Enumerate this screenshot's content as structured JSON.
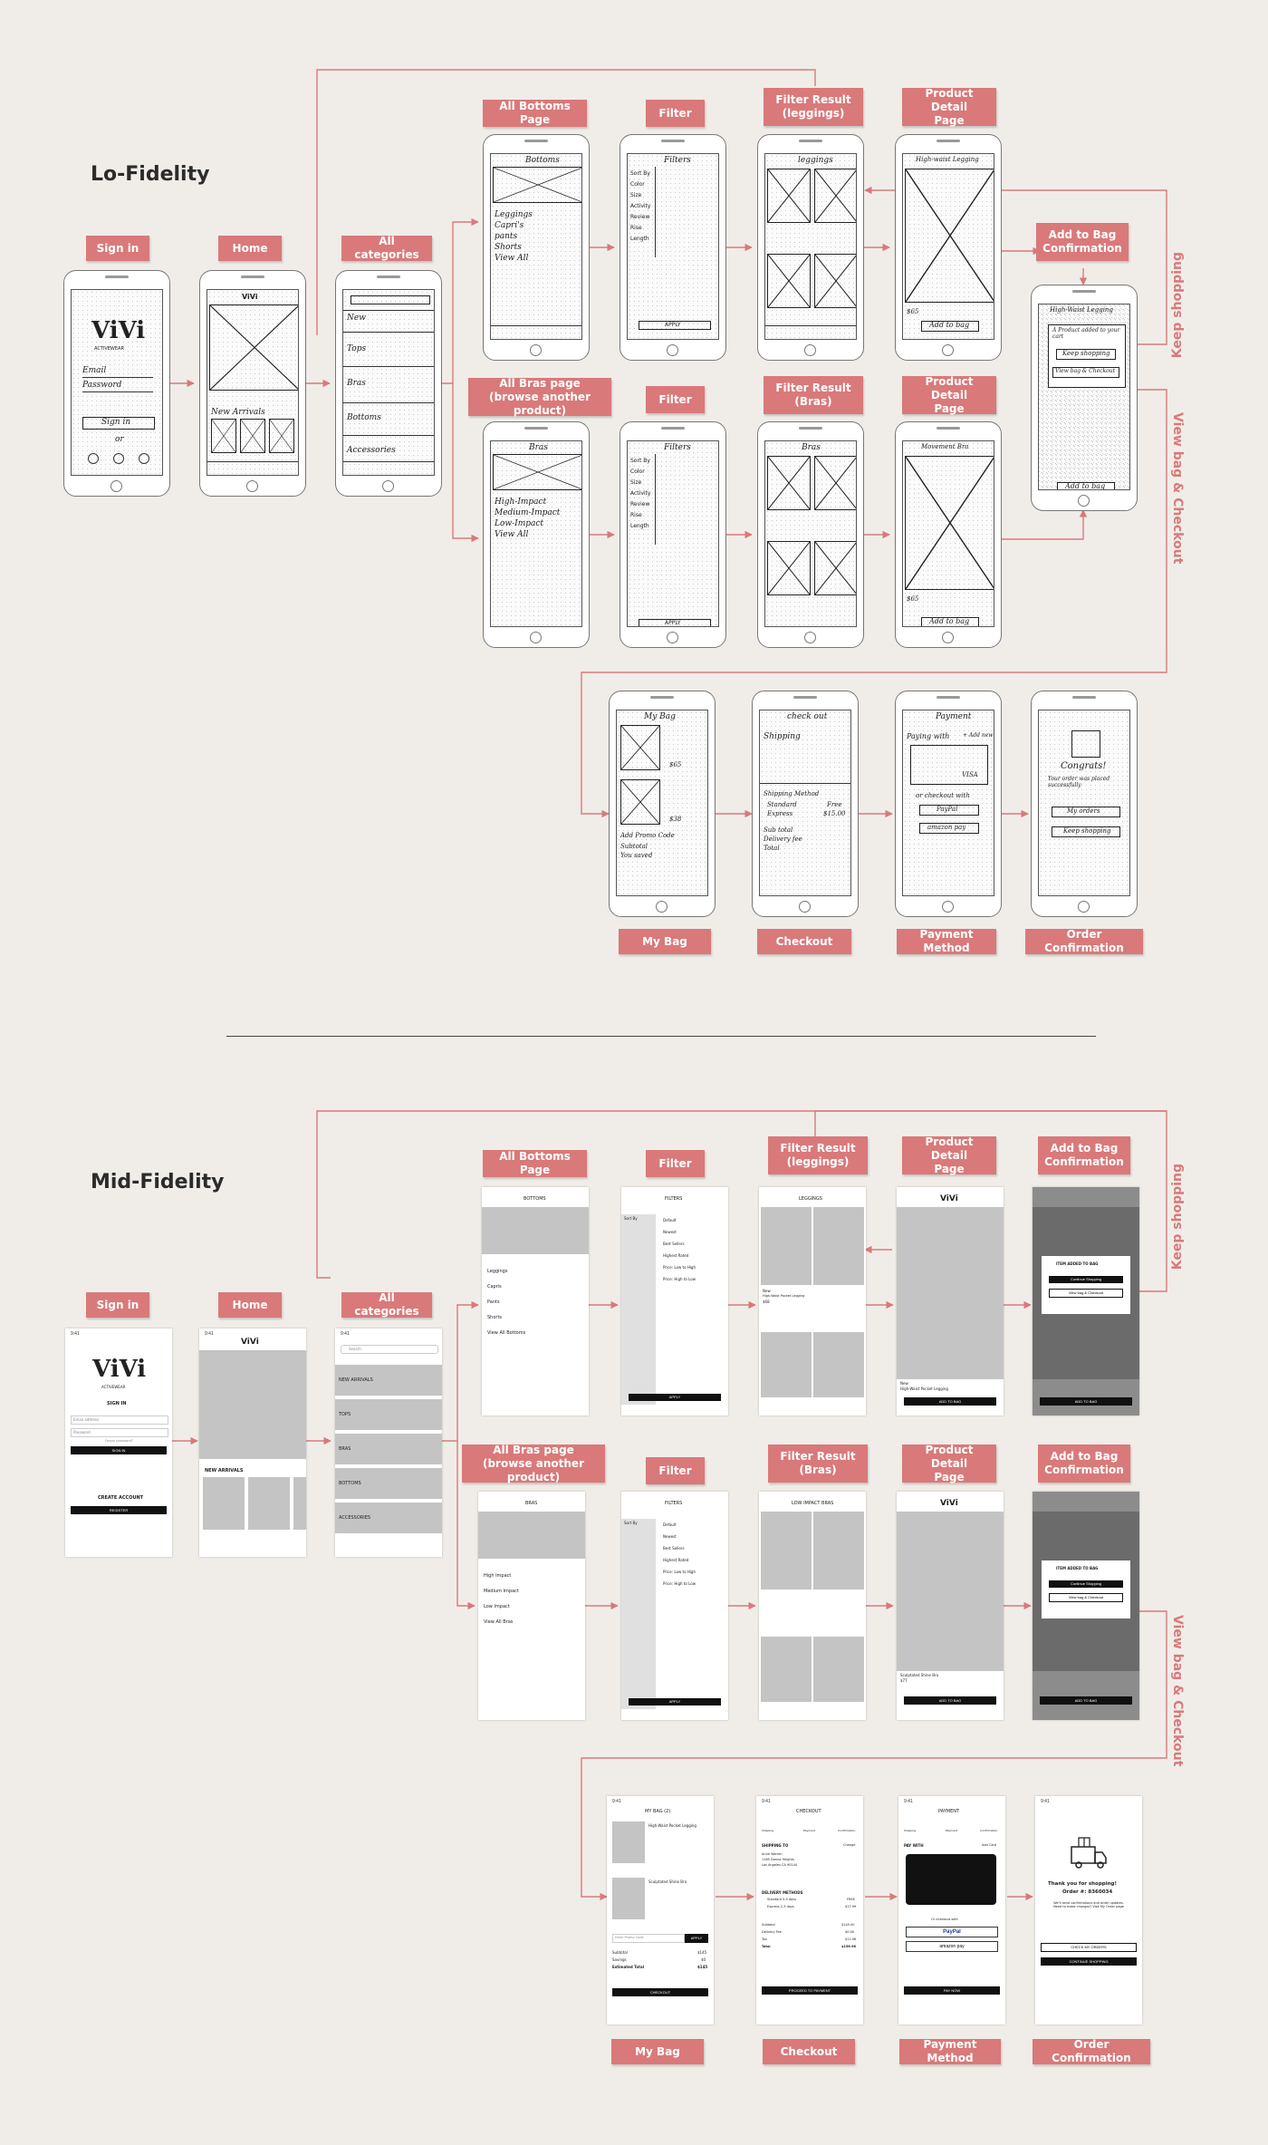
{
  "sections": {
    "lofi_title": "Lo-Fidelity",
    "midfi_title": "Mid-Fidelity"
  },
  "labels": {
    "sign_in": "Sign in",
    "home": "Home",
    "all_categories": "All categories",
    "all_bottoms": "All Bottoms Page",
    "filter": "Filter",
    "filter_result_leggings": "Filter Result\n(leggings)",
    "product_detail": "Product Detail\nPage",
    "add_to_bag_conf": "Add to Bag\nConfirmation",
    "all_bras": "All Bras page\n(browse another product)",
    "filter_result_bras": "Filter Result\n(Bras)",
    "my_bag": "My Bag",
    "checkout": "Checkout",
    "payment_method": "Payment Method",
    "order_confirmation": "Order Confirmation"
  },
  "side_labels": {
    "keep_shopping": "Keep shopping",
    "view_bag": "View bag & Checkout"
  },
  "lofi_text": {
    "brand": "ViVi",
    "brand_sub": "ACTIVEWEAR",
    "email": "Email",
    "password": "Password",
    "sign_in_btn": "Sign in",
    "or": "or",
    "new_arrivals": "New Arrivals",
    "cats": [
      "New",
      "Tops",
      "Bras",
      "Bottoms",
      "Accessories"
    ],
    "bottoms_title": "Bottoms",
    "bottoms_items": [
      "Leggings",
      "Capri's",
      "pants",
      "Shorts",
      "View All"
    ],
    "bras_title": "Bras",
    "bras_items": [
      "High-Impact",
      "Medium-Impact",
      "Low-Impact",
      "View All"
    ],
    "filters_title": "Filters",
    "filters_items": [
      "Sort By",
      "Color",
      "Size",
      "Activity",
      "Review",
      "Rise",
      "Length"
    ],
    "apply": "APPLY",
    "leggings_title": "leggings",
    "pdp_title_1": "High-waist Legging",
    "price_65": "$65",
    "add_to_bag": "Add to bag",
    "movement_bra": "Movement Bra",
    "atb_title": "High-Waist Legging",
    "atb_added": "A Product added to your cart",
    "keep_shopping_btn": "Keep shopping",
    "view_bag_btn": "View bag & Checkout",
    "my_bag_title": "My Bag",
    "price_38": "$38",
    "promo": "Add Promo Code",
    "subtotal": "Subtotal",
    "you_saved": "You saved",
    "checkout_title": "check out",
    "shipping": "Shipping",
    "shipping_method": "Shipping Method",
    "standard": "Standard",
    "express": "Express",
    "free": "Free",
    "price_15": "$15.00",
    "sub_total": "Sub total",
    "delivery_fee": "Delivery fee",
    "total": "Total",
    "payment_title": "Payment",
    "paying_with": "Paying with",
    "add_new": "+ Add new",
    "visa": "VISA",
    "or_checkout_with": "or checkout with",
    "paypal": "PayPal",
    "amazon_pay": "amazon pay",
    "congrats": "Congrats!",
    "order_placed": "Your order was placed successfully",
    "my_orders": "My orders",
    "keep_shopping2": "Keep shopping"
  },
  "midfi_text": {
    "time": "9:41",
    "brand": "ViVi",
    "brand_sub": "ACTIVEWEAR",
    "sign_in_head": "SIGN IN",
    "email_ph": "Email address",
    "password_ph": "Password",
    "forgot": "Forgot password?",
    "sign_in_btn": "SIGN IN",
    "create_account": "CREATE ACCOUNT",
    "register": "REGISTER",
    "new_arrivals": "NEW ARRIVALS",
    "search": "Search",
    "cats": [
      "NEW ARRIVALS",
      "TOPS",
      "BRAS",
      "BOTTOMS",
      "ACCESSORIES"
    ],
    "bottoms_title": "BOTTOMS",
    "bottoms_items": [
      "Leggings",
      "Capris",
      "Pants",
      "Shorts",
      "View All Bottoms"
    ],
    "bras_title": "BRAS",
    "bras_items": [
      "High Impact",
      "Medium Impact",
      "Low Impact",
      "View All Bras"
    ],
    "filters_title": "FILTERS",
    "sort_by": "Sort By",
    "filter_opts": [
      "Default",
      "Newest",
      "Best Sellers",
      "Highest Rated",
      "Price: Low to High",
      "Price: High to Low"
    ],
    "apply": "APPLY",
    "leggings_title": "LEGGINGS",
    "low_impact_bras": "LOW IMPACT BRAS",
    "new": "New",
    "hw_legging": "High-Waist Pocket Legging",
    "price_68": "$68",
    "add_to_bag": "ADD TO BAG",
    "item_added": "ITEM ADDED TO BAG",
    "continue_shopping": "Continue Shopping",
    "view_bag_checkout": "View bag & Checkout",
    "sculpted_bra": "Sculptated Shine Bra",
    "price_77": "$77",
    "my_bag_title": "MY BAG (2)",
    "promo_ph": "Enter Promo Code",
    "apply_btn": "APPLY",
    "subtotal": "Subtotal",
    "savings": "Savings",
    "est_total": "Estimated Total",
    "amt_145": "$145",
    "amt_0": "$0",
    "checkout_btn": "CHECKOUT",
    "checkout_title": "CHECKOUT",
    "steps": [
      "Shipping",
      "Payment",
      "Confirmation"
    ],
    "shipping_to": "SHIPPING TO",
    "change": "Change",
    "addr_name": "Anne Warren",
    "addr_street": "1185 Donna Heights",
    "addr_city": "Los Angeles CA 90144",
    "delivery_methods": "DELIVERY METHODS",
    "standard": "Standard 5-9 days",
    "express": "Express 2-3 days",
    "free_up": "FREE",
    "amt_1799": "$17.99",
    "sub_amt": "$145.00",
    "delivery_fee_label": "Delivery Fee",
    "del_amt": "$0.00",
    "tax": "Tax",
    "tax_amt": "$11.96",
    "total": "Total",
    "total_amt": "$156.96",
    "proceed_payment": "PROCEED TO PAYMENT",
    "payment_title": "PAYMENT",
    "pay_with": "PAY WITH",
    "add_card": "Add Card",
    "or_checkout_with": "Or checkout with",
    "paypal": "PayPal",
    "amazon_pay": "amazon pay",
    "pay_now": "PAY NOW",
    "thank_you": "Thank you for shopping!",
    "order_num": "Order #: 8360034",
    "conf_msg": "We'll send confirmations and order updates. Need to make changes? Visit My Order page",
    "check_order": "CHECK MY ORDERS",
    "continue_shopping_btn": "CONTINUE SHOPPING"
  },
  "colors": {
    "accent": "#d9797a",
    "background": "#f0ede8",
    "wire_gray": "#c4c4c4"
  }
}
